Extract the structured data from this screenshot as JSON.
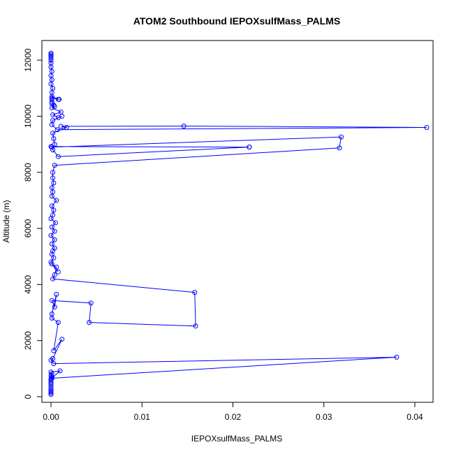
{
  "chart_data": {
    "type": "scatter",
    "title": "ATOM2 Southbound IEPOXsulfMass_PALMS",
    "xlabel": "IEPOXsulfMass_PALMS",
    "ylabel": "Altitude (m)",
    "xlim": [
      -0.001,
      0.042
    ],
    "ylim": [
      -200,
      12700
    ],
    "x_ticks": [
      0,
      0.01,
      0.02,
      0.03,
      0.04
    ],
    "x_tick_labels": [
      "0.00",
      "0.01",
      "0.02",
      "0.03",
      "0.04"
    ],
    "y_ticks": [
      0,
      2000,
      4000,
      6000,
      8000,
      10000,
      12000
    ],
    "y_tick_labels": [
      "0",
      "2000",
      "4000",
      "6000",
      "8000",
      "10000",
      "12000"
    ],
    "grid": false,
    "color": "#0000ff",
    "connected": true,
    "series": [
      {
        "x": [
          0,
          0,
          0,
          0,
          0,
          0,
          0,
          0,
          0,
          0,
          0.0001,
          0,
          0.0001,
          0,
          0.001,
          0.0001,
          0.038,
          0.0003,
          0,
          0.0002,
          0.0012,
          0.0003,
          0.0008,
          0.0001,
          0.0001,
          0.0006,
          0.0004,
          0.0001,
          0.0044,
          0.0042,
          0.0159,
          0.0158,
          0.0002,
          0.0004,
          0.0006,
          0.0001,
          0.0008,
          0,
          0.0003,
          0.0001,
          0.0002,
          0.0004,
          0.0001,
          0.0004,
          0,
          0.0004,
          0.0001,
          0.0005,
          0,
          0.0002,
          0.0003,
          0.0001,
          0.0006,
          0.0001,
          0.0002,
          0.0001,
          0.0003,
          0.0002,
          0.0002,
          0.0004,
          0.0317,
          0.0319,
          0.0001,
          0,
          0.0218,
          0.0218,
          0.0008,
          0.0002,
          0.0004,
          0.0003,
          0.0002,
          0.0017,
          0.0011,
          0.0146,
          0.0413,
          0.0007,
          0.0001,
          0.0002,
          0.0012,
          0.0008,
          0.0002,
          0.0011,
          0.0001,
          0.0003,
          0.0001,
          0.0004,
          0.0001,
          0.0001,
          0.0001,
          0.0008,
          0.0009,
          0.0001,
          0.0001,
          0.0002,
          0,
          0.0001,
          0,
          0.0001,
          0,
          0,
          0,
          0,
          0,
          0,
          0
        ],
        "y": [
          80,
          130,
          180,
          230,
          300,
          380,
          460,
          520,
          580,
          640,
          700,
          760,
          820,
          880,
          920,
          660,
          1410,
          1180,
          1300,
          1360,
          2050,
          1640,
          2650,
          2800,
          2950,
          3650,
          3200,
          3430,
          3340,
          2650,
          2520,
          3720,
          4200,
          4350,
          4620,
          4730,
          4450,
          4800,
          4950,
          5080,
          5200,
          5300,
          5450,
          5600,
          5750,
          5900,
          6050,
          6200,
          6350,
          6480,
          6650,
          6800,
          7000,
          7150,
          7300,
          7450,
          7620,
          7800,
          8000,
          8250,
          8870,
          9260,
          8900,
          8920,
          8900,
          8900,
          8560,
          8800,
          9000,
          9200,
          9400,
          9600,
          9640,
          9650,
          9600,
          9520,
          9700,
          9850,
          10000,
          9950,
          10050,
          10150,
          10300,
          10400,
          10450,
          10350,
          10500,
          10600,
          10650,
          10600,
          10600,
          10700,
          10850,
          11000,
          11150,
          11300,
          11450,
          11600,
          11750,
          11900,
          12000,
          12080,
          12150,
          12200,
          12250
        ]
      }
    ]
  }
}
